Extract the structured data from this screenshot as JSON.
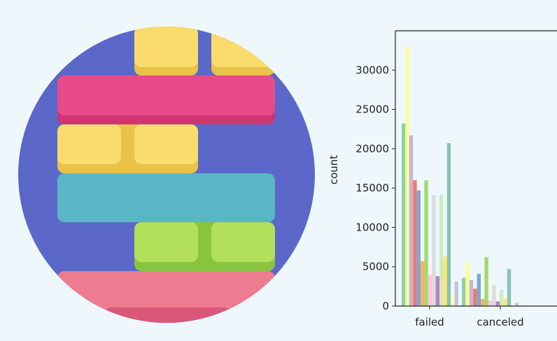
{
  "logo": {
    "icon": "stacked-blocks-logo",
    "colors": {
      "circle": "#5b67c9",
      "yellow": "#f9dc6c",
      "yellow_shadow": "#e9c24a",
      "magenta": "#e84b8a",
      "magenta_shadow": "#cf3572",
      "teal": "#5ab6c5",
      "green": "#b2e05a",
      "green_shadow": "#8ac43f",
      "pink": "#ee7b90",
      "pink_shadow": "#d9587a"
    }
  },
  "chart_data": {
    "type": "bar",
    "title": "",
    "xlabel": "",
    "ylabel": "count",
    "categories": [
      "failed",
      "canceled"
    ],
    "ylim": [
      0,
      35000
    ],
    "yticks": [
      0,
      5000,
      10000,
      15000,
      20000,
      25000,
      30000
    ],
    "grid": false,
    "series": [
      {
        "color": "#8fd1a6",
        "values": [
          23200,
          3600
        ]
      },
      {
        "color": "#fdfd96",
        "values": [
          32900,
          5600
        ]
      },
      {
        "color": "#c5b6d9",
        "values": [
          21700,
          3300
        ]
      },
      {
        "color": "#f2796c",
        "values": [
          16000,
          2200
        ]
      },
      {
        "color": "#7fa8d4",
        "values": [
          14700,
          4100
        ]
      },
      {
        "color": "#f5b363",
        "values": [
          5700,
          900
        ]
      },
      {
        "color": "#a6d86d",
        "values": [
          16000,
          6200
        ]
      },
      {
        "color": "#f7c6dd",
        "values": [
          4000,
          700
        ]
      },
      {
        "color": "#dcdcdc",
        "values": [
          14100,
          2700
        ]
      },
      {
        "color": "#b982c1",
        "values": [
          3800,
          600
        ]
      },
      {
        "color": "#cdebc0",
        "values": [
          14100,
          2100
        ]
      },
      {
        "color": "#fde66e",
        "values": [
          6300,
          900
        ]
      },
      {
        "color": "#87c4b4",
        "values": [
          20700,
          4700
        ]
      },
      {
        "color": "#fdfdc4",
        "values": [
          1500,
          200
        ]
      },
      {
        "color": "#c6c1e0",
        "values": [
          3100,
          400
        ]
      }
    ]
  }
}
